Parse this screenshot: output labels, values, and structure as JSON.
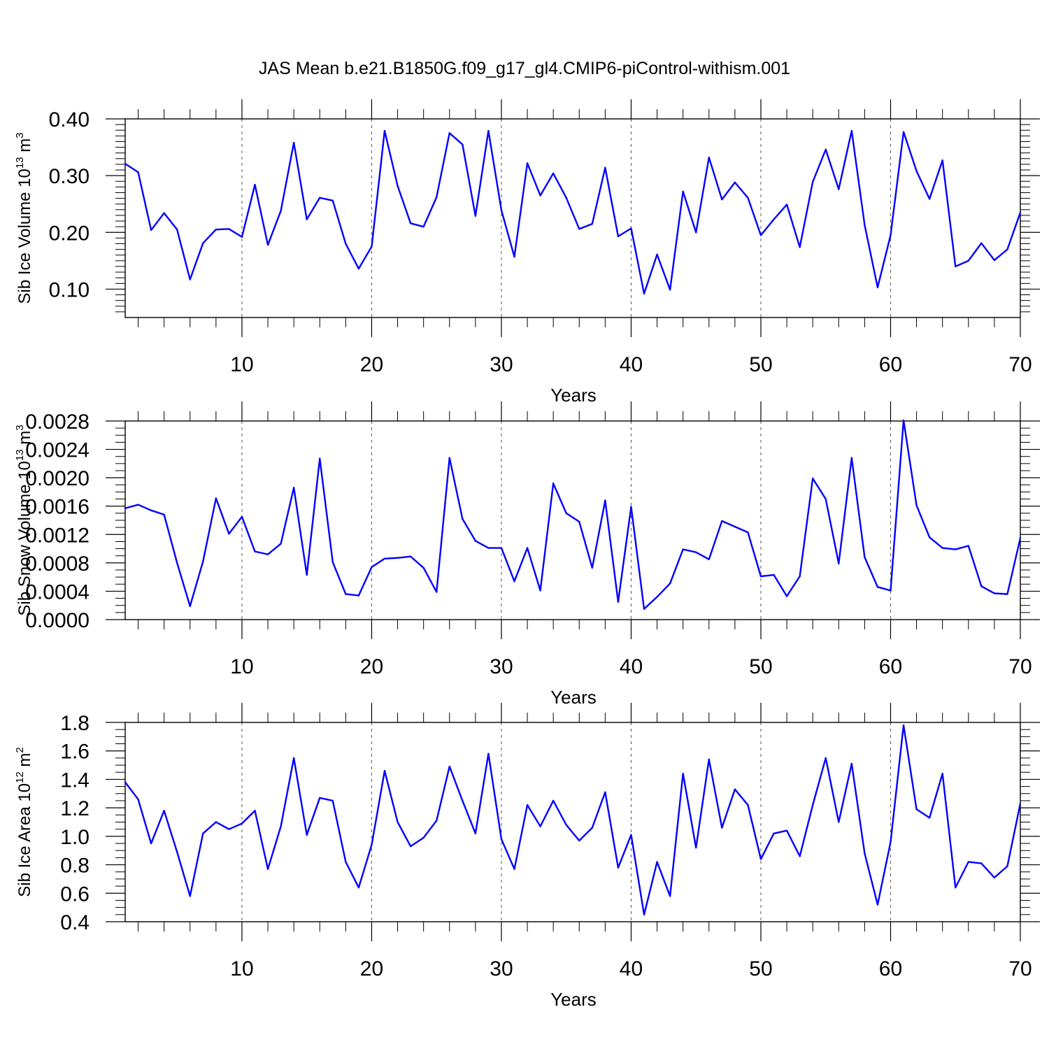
{
  "page_title": "JAS Mean b.e21.B1850G.f09_g17_gl4.CMIP6-piControl-withism.001",
  "colors": {
    "line": "#0000ff",
    "axes": "#000000",
    "grid": "#555555"
  },
  "chart_data": [
    {
      "type": "line",
      "xlabel": "Years",
      "ylabel_main": "Sib Ice Volume 10",
      "ylabel_exp": "13",
      "ylabel_unit": " m",
      "ylabel_unit_exp": "3",
      "xlim": [
        1,
        70
      ],
      "ylim": [
        0.05,
        0.4
      ],
      "yticks": [
        0.1,
        0.2,
        0.3,
        0.4
      ],
      "ytick_labels": [
        "0.10",
        "0.20",
        "0.30",
        "0.40"
      ],
      "yminor": [
        0.06,
        0.07,
        0.08,
        0.09,
        0.11,
        0.12,
        0.13,
        0.14,
        0.15,
        0.16,
        0.17,
        0.18,
        0.19,
        0.21,
        0.22,
        0.23,
        0.24,
        0.25,
        0.26,
        0.27,
        0.28,
        0.29,
        0.31,
        0.32,
        0.33,
        0.34,
        0.35,
        0.36,
        0.37,
        0.38,
        0.39
      ],
      "xticks": [
        10,
        20,
        30,
        40,
        50,
        60,
        70
      ],
      "xtick_labels": [
        "10",
        "20",
        "30",
        "40",
        "50",
        "60",
        "70"
      ],
      "grid_x": [
        10,
        20,
        30,
        40,
        50,
        60
      ],
      "x_start": 1,
      "values": [
        0.321,
        0.306,
        0.204,
        0.234,
        0.205,
        0.117,
        0.181,
        0.205,
        0.206,
        0.192,
        0.284,
        0.178,
        0.238,
        0.358,
        0.223,
        0.261,
        0.256,
        0.18,
        0.136,
        0.175,
        0.379,
        0.282,
        0.216,
        0.21,
        0.262,
        0.375,
        0.355,
        0.229,
        0.379,
        0.239,
        0.157,
        0.322,
        0.265,
        0.304,
        0.261,
        0.206,
        0.215,
        0.314,
        0.193,
        0.207,
        0.092,
        0.161,
        0.099,
        0.272,
        0.2,
        0.332,
        0.258,
        0.288,
        0.261,
        0.195,
        0.223,
        0.249,
        0.174,
        0.289,
        0.346,
        0.276,
        0.379,
        0.213,
        0.103,
        0.195,
        0.377,
        0.308,
        0.259,
        0.327,
        0.14,
        0.15,
        0.181,
        0.151,
        0.17,
        0.235
      ]
    },
    {
      "type": "line",
      "xlabel": "Years",
      "ylabel_main": "Sib Snow Volume 10",
      "ylabel_exp": "13",
      "ylabel_unit": " m",
      "ylabel_unit_exp": "3",
      "xlim": [
        1,
        70
      ],
      "ylim": [
        0.0,
        0.0028
      ],
      "yticks": [
        0.0,
        0.0004,
        0.0008,
        0.0012,
        0.0016,
        0.002,
        0.0024,
        0.0028
      ],
      "ytick_labels": [
        "0.0000",
        "0.0004",
        "0.0008",
        "0.0012",
        "0.0016",
        "0.0020",
        "0.0024",
        "0.0028"
      ],
      "yminor": [
        0.0001,
        0.0002,
        0.0003,
        0.0005,
        0.0006,
        0.0007,
        0.0009,
        0.001,
        0.0011,
        0.0013,
        0.0014,
        0.0015,
        0.0017,
        0.0018,
        0.0019,
        0.0021,
        0.0022,
        0.0023,
        0.0025,
        0.0026,
        0.0027
      ],
      "xticks": [
        10,
        20,
        30,
        40,
        50,
        60,
        70
      ],
      "xtick_labels": [
        "10",
        "20",
        "30",
        "40",
        "50",
        "60",
        "70"
      ],
      "grid_x": [
        10,
        20,
        30,
        40,
        50,
        60
      ],
      "x_start": 1,
      "values": [
        0.00157,
        0.00162,
        0.00154,
        0.00148,
        0.0008,
        0.00019,
        0.00082,
        0.00171,
        0.00121,
        0.00145,
        0.00096,
        0.00092,
        0.00107,
        0.00186,
        0.00063,
        0.00227,
        0.00081,
        0.00036,
        0.00034,
        0.00074,
        0.00086,
        0.00087,
        0.00089,
        0.00073,
        0.00039,
        0.00228,
        0.00142,
        0.00111,
        0.00101,
        0.00101,
        0.00054,
        0.00101,
        0.00041,
        0.00192,
        0.0015,
        0.00138,
        0.00073,
        0.00168,
        0.00025,
        0.00159,
        0.00015,
        0.00032,
        0.00051,
        0.00099,
        0.00095,
        0.00085,
        0.00139,
        0.00131,
        0.00123,
        0.00061,
        0.00063,
        0.00033,
        0.00061,
        0.00199,
        0.0017,
        0.00079,
        0.00228,
        0.00088,
        0.00046,
        0.00041,
        0.00281,
        0.00161,
        0.00116,
        0.00101,
        0.00099,
        0.00104,
        0.00047,
        0.00037,
        0.00036,
        0.00115
      ]
    },
    {
      "type": "line",
      "xlabel": "Years",
      "ylabel_main": "Sib Ice Area 10",
      "ylabel_exp": "12",
      "ylabel_unit": " m",
      "ylabel_unit_exp": "2",
      "xlim": [
        1,
        70
      ],
      "ylim": [
        0.4,
        1.8
      ],
      "yticks": [
        0.4,
        0.6,
        0.8,
        1.0,
        1.2,
        1.4,
        1.6,
        1.8
      ],
      "ytick_labels": [
        "0.4",
        "0.6",
        "0.8",
        "1.0",
        "1.2",
        "1.4",
        "1.6",
        "1.8"
      ],
      "yminor": [
        0.45,
        0.5,
        0.55,
        0.65,
        0.7,
        0.75,
        0.85,
        0.9,
        0.95,
        1.05,
        1.1,
        1.15,
        1.25,
        1.3,
        1.35,
        1.45,
        1.5,
        1.55,
        1.65,
        1.7,
        1.75
      ],
      "xticks": [
        10,
        20,
        30,
        40,
        50,
        60,
        70
      ],
      "xtick_labels": [
        "10",
        "20",
        "30",
        "40",
        "50",
        "60",
        "70"
      ],
      "grid_x": [
        10,
        20,
        30,
        40,
        50,
        60
      ],
      "x_start": 1,
      "values": [
        1.38,
        1.26,
        0.95,
        1.18,
        0.89,
        0.58,
        1.02,
        1.1,
        1.05,
        1.09,
        1.18,
        0.77,
        1.07,
        1.55,
        1.01,
        1.27,
        1.25,
        0.82,
        0.64,
        0.94,
        1.46,
        1.1,
        0.93,
        0.99,
        1.11,
        1.49,
        1.25,
        1.02,
        1.58,
        0.98,
        0.77,
        1.22,
        1.07,
        1.25,
        1.08,
        0.97,
        1.06,
        1.31,
        0.78,
        1.01,
        0.45,
        0.82,
        0.58,
        1.44,
        0.92,
        1.54,
        1.06,
        1.33,
        1.22,
        0.84,
        1.02,
        1.04,
        0.86,
        1.22,
        1.55,
        1.1,
        1.51,
        0.88,
        0.52,
        0.96,
        1.78,
        1.19,
        1.13,
        1.44,
        0.64,
        0.82,
        0.81,
        0.71,
        0.79,
        1.23
      ]
    }
  ]
}
